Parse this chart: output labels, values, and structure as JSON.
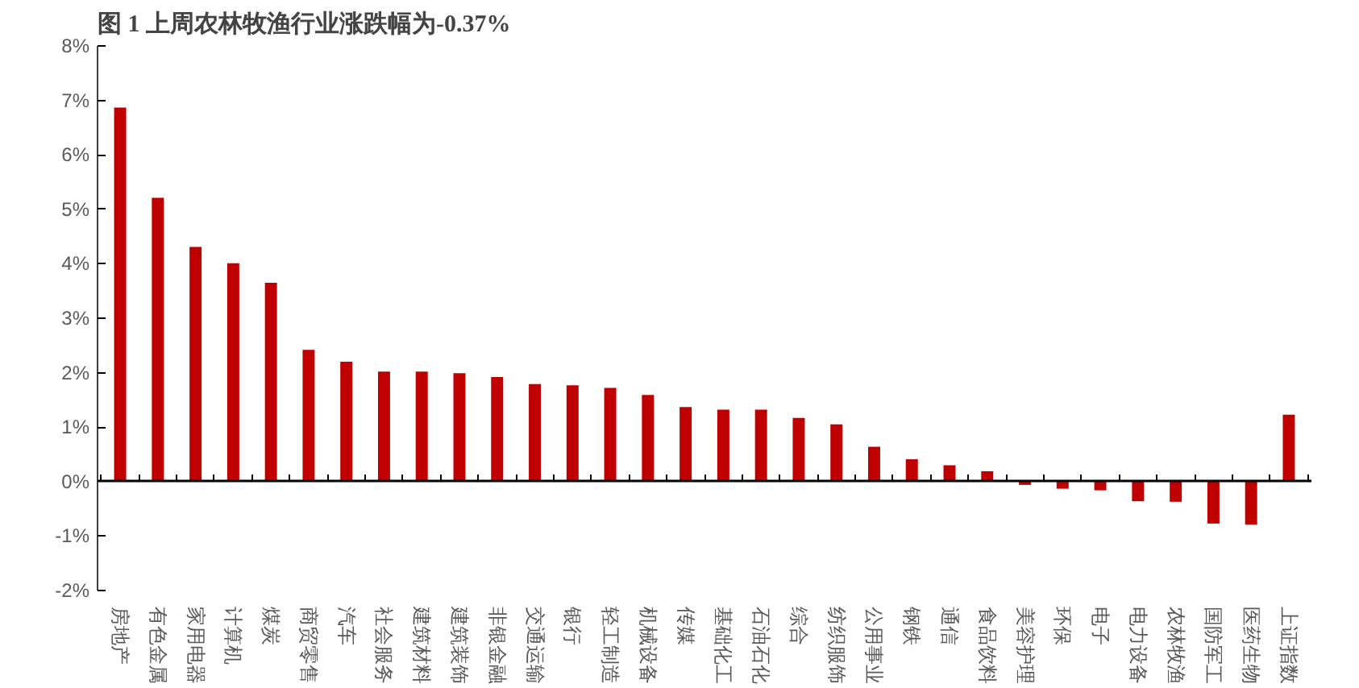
{
  "chart_data": {
    "type": "bar",
    "title": "图 1 上周农林牧渔行业涨跌幅为-0.37%",
    "categories": [
      "房地产",
      "有色金属",
      "家用电器",
      "计算机",
      "煤炭",
      "商贸零售",
      "汽车",
      "社会服务",
      "建筑材料",
      "建筑装饰",
      "非银金融",
      "交通运输",
      "银行",
      "轻工制造",
      "机械设备",
      "传媒",
      "基础化工",
      "石油石化",
      "综合",
      "纺织服饰",
      "公用事业",
      "钢铁",
      "通信",
      "食品饮料",
      "美容护理",
      "环保",
      "电子",
      "电力设备",
      "农林牧渔",
      "国防军工",
      "医药生物",
      "上证指数"
    ],
    "values": [
      6.87,
      5.21,
      4.31,
      4.01,
      3.65,
      2.42,
      2.2,
      2.02,
      2.02,
      1.99,
      1.92,
      1.79,
      1.77,
      1.72,
      1.59,
      1.37,
      1.32,
      1.32,
      1.17,
      1.05,
      0.64,
      0.41,
      0.3,
      0.19,
      -0.06,
      -0.13,
      -0.16,
      -0.36,
      -0.37,
      -0.77,
      -0.79,
      1.23
    ],
    "color": "#c00000",
    "ylim": [
      -2,
      8
    ],
    "yticks": [
      {
        "value": -2,
        "label": "-2%"
      },
      {
        "value": -1,
        "label": "-1%"
      },
      {
        "value": 0,
        "label": "0%"
      },
      {
        "value": 1,
        "label": "1%"
      },
      {
        "value": 2,
        "label": "2%"
      },
      {
        "value": 3,
        "label": "3%"
      },
      {
        "value": 4,
        "label": "4%"
      },
      {
        "value": 5,
        "label": "5%"
      },
      {
        "value": 6,
        "label": "6%"
      },
      {
        "value": 7,
        "label": "7%"
      },
      {
        "value": 8,
        "label": "8%"
      }
    ],
    "tick_labels": "xy"
  }
}
